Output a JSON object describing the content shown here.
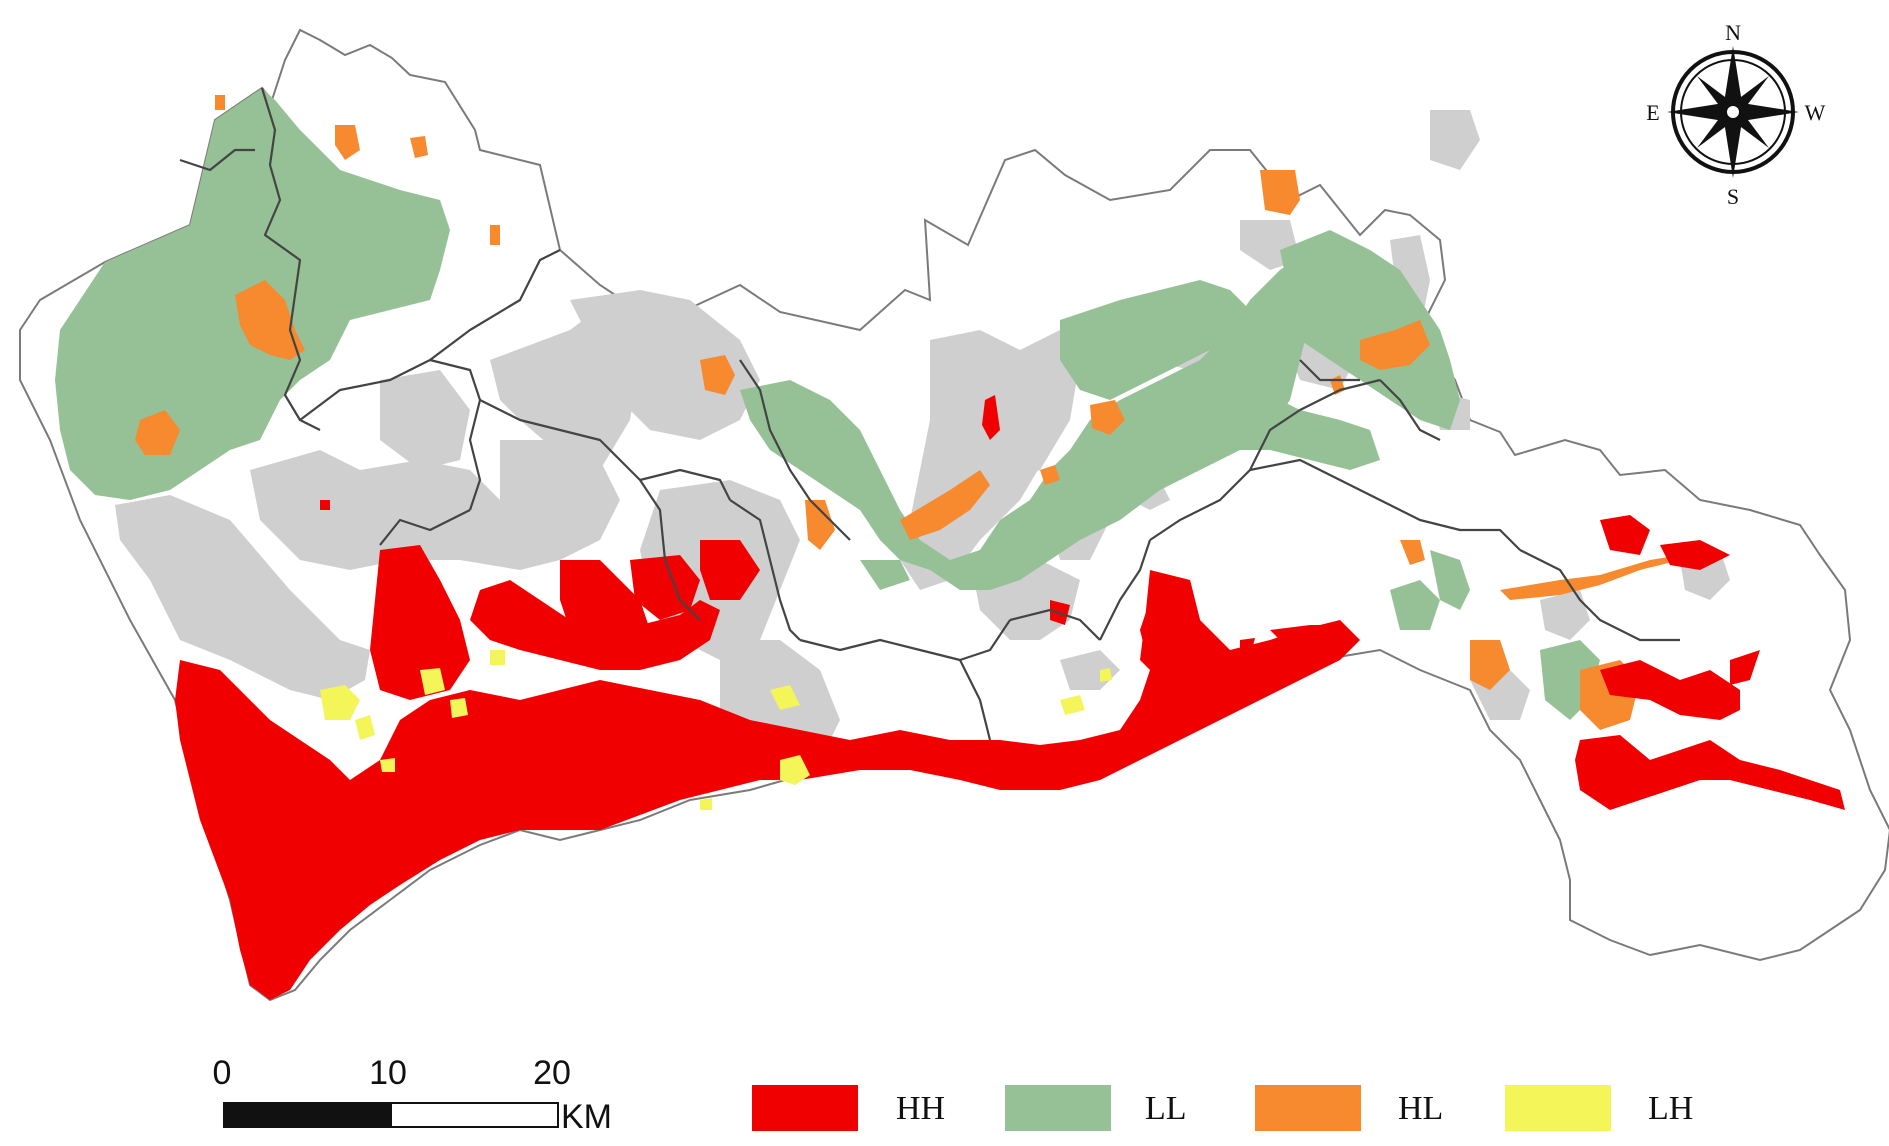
{
  "compass": {
    "north": "N",
    "south": "S",
    "east": "E",
    "west": "W"
  },
  "scale_bar": {
    "ticks": [
      "0",
      "10",
      "20"
    ],
    "unit": "KM"
  },
  "legend": [
    {
      "label": "HH",
      "color": "#f00000"
    },
    {
      "label": "LL",
      "color": "#96c096"
    },
    {
      "label": "HL",
      "color": "#f7892e"
    },
    {
      "label": "LH",
      "color": "#f4f558"
    }
  ],
  "colors": {
    "nonsignificant": "#cfcfcf",
    "boundary": "#444444",
    "background": "#ffffff"
  }
}
